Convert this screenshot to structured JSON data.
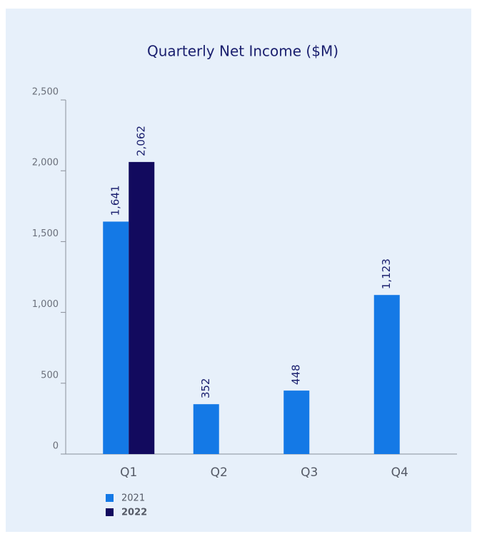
{
  "chart_data": {
    "type": "bar",
    "title": "Quarterly Net Income ($M)",
    "categories": [
      "Q1",
      "Q2",
      "Q3",
      "Q4"
    ],
    "series": [
      {
        "name": "2021",
        "color": "#1479e6",
        "values": [
          1641,
          352,
          448,
          1123
        ],
        "value_labels": [
          "1,641",
          "352",
          "448",
          "1,123"
        ]
      },
      {
        "name": "2022",
        "color": "#120a5e",
        "values": [
          2062,
          null,
          null,
          null
        ],
        "value_labels": [
          "2,062",
          null,
          null,
          null
        ]
      }
    ],
    "ylim": [
      0,
      2500
    ],
    "yticks": [
      0,
      500,
      {
        "value": 1000,
        "label": "1,000"
      },
      {
        "value": 1500,
        "label": "1,500"
      },
      {
        "value": 2000,
        "label": "2,000"
      },
      {
        "value": 2500,
        "label": "2,500"
      }
    ],
    "grid": false
  }
}
